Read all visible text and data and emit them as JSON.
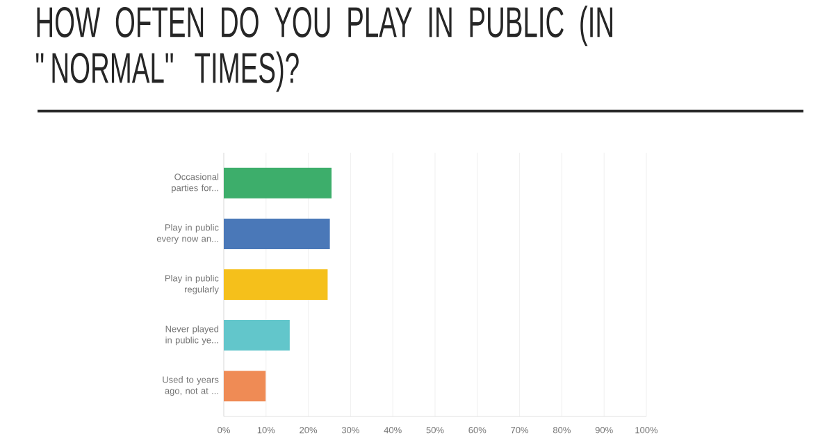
{
  "chart_data": {
    "type": "bar",
    "orientation": "horizontal",
    "title": "HOW OFTEN DO YOU PLAY IN PUBLIC (IN \"NORMAL\" TIMES)?",
    "categories": [
      "Occasional parties for...",
      "Play in public every now an...",
      "Play in public regularly",
      "Never played in public ye...",
      "Used to years ago, not at ..."
    ],
    "values": [
      25.5,
      25.1,
      24.6,
      15.6,
      9.9
    ],
    "colors": [
      "#3dae6b",
      "#4a78b8",
      "#f5c01b",
      "#62c6cb",
      "#ef8b55"
    ],
    "xlim": [
      0,
      100
    ],
    "xticks": [
      {
        "value": 0,
        "label": "0%"
      },
      {
        "value": 10,
        "label": "10%"
      },
      {
        "value": 20,
        "label": "20%"
      },
      {
        "value": 30,
        "label": "30%"
      },
      {
        "value": 40,
        "label": "40%"
      },
      {
        "value": 50,
        "label": "50%"
      },
      {
        "value": 60,
        "label": "60%"
      },
      {
        "value": 70,
        "label": "70%"
      },
      {
        "value": 80,
        "label": "80%"
      },
      {
        "value": 90,
        "label": "90%"
      },
      {
        "value": 100,
        "label": "100%"
      }
    ],
    "grid": "x"
  }
}
